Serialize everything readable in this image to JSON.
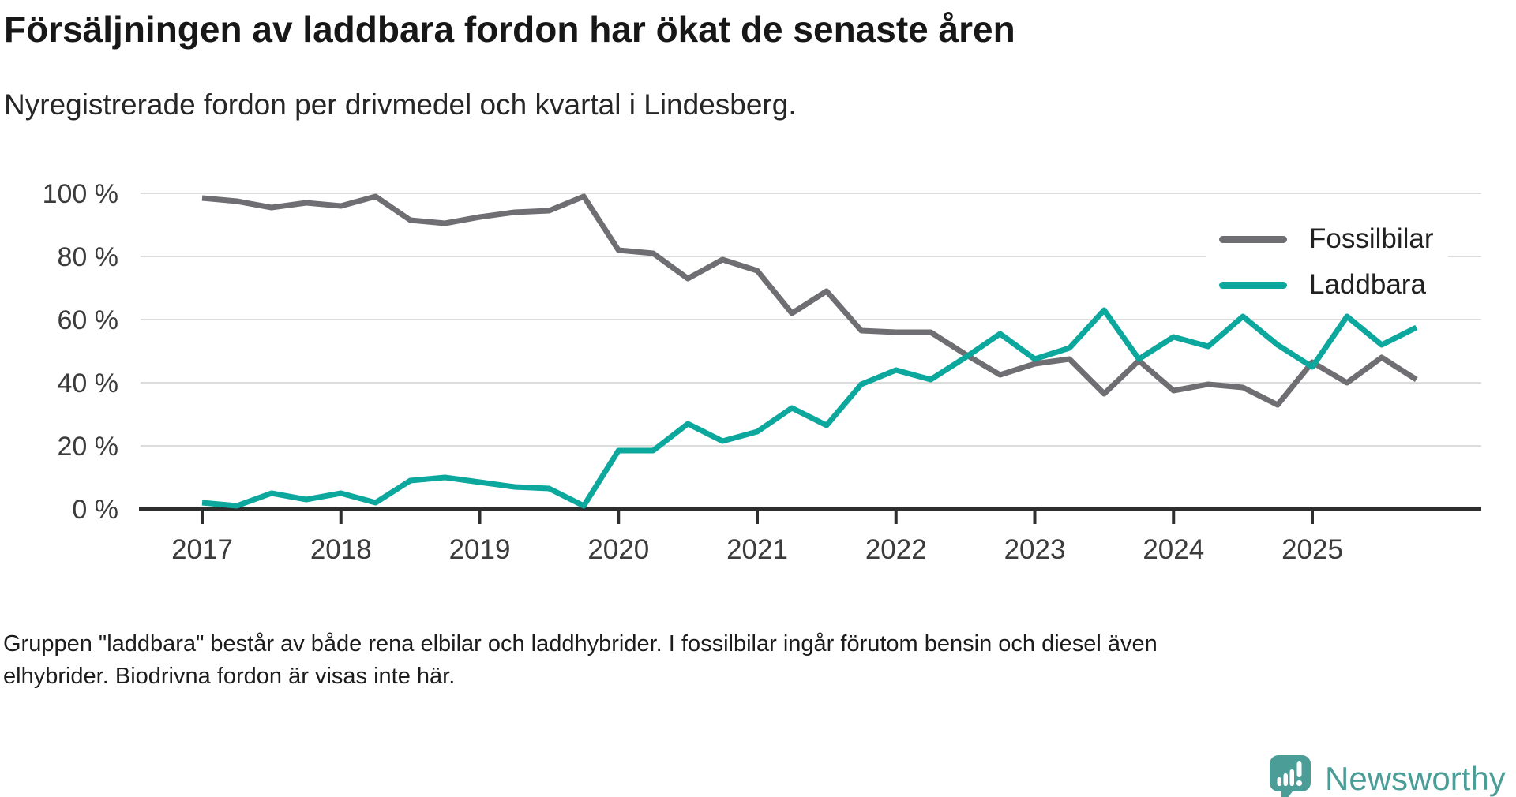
{
  "header": {
    "title": "Försäljningen av laddbara fordon har ökat de senaste åren",
    "subtitle": "Nyregistrerade fordon per drivmedel och kvartal i Lindesberg."
  },
  "footer": {
    "lines": [
      "Gruppen \"laddbara\" består av både rena elbilar och laddhybrider. I fossilbilar ingår förutom bensin och diesel även",
      "elhybrider. Biodrivna fordon är visas inte här."
    ]
  },
  "logo": {
    "text": "Newsworthy",
    "color": "#4b9e98",
    "icon": "speech-bubble-bar-chart-icon"
  },
  "colors": {
    "fossil_line": "#6f6e72",
    "laddbara_line": "#0ca79d",
    "gridline": "#dcdcdc",
    "axis": "#2e2e2e",
    "tick_label": "#3b3b3b"
  },
  "chart_data": {
    "type": "line",
    "x": [
      "2017 Q1",
      "2017 Q2",
      "2017 Q3",
      "2017 Q4",
      "2018 Q1",
      "2018 Q2",
      "2018 Q3",
      "2018 Q4",
      "2019 Q1",
      "2019 Q2",
      "2019 Q3",
      "2019 Q4",
      "2020 Q1",
      "2020 Q2",
      "2020 Q3",
      "2020 Q4",
      "2021 Q1",
      "2021 Q2",
      "2021 Q3",
      "2021 Q4",
      "2022 Q1",
      "2022 Q2",
      "2022 Q3",
      "2022 Q4",
      "2023 Q1",
      "2023 Q2",
      "2023 Q3",
      "2023 Q4",
      "2024 Q1",
      "2024 Q2",
      "2024 Q3",
      "2024 Q4",
      "2025 Q1",
      "2025 Q2",
      "2025 Q3",
      "2025 Q4"
    ],
    "series": [
      {
        "name": "Fossilbilar",
        "color": "#6f6e72",
        "values": [
          98.5,
          97.5,
          95.5,
          97,
          96,
          99,
          91.5,
          90.5,
          92.5,
          94,
          94.5,
          99,
          82,
          81,
          73,
          79,
          75.5,
          62,
          69,
          56.5,
          56,
          56,
          49,
          42.5,
          46,
          47.5,
          36.5,
          47,
          37.5,
          39.5,
          38.5,
          33,
          46.5,
          40,
          48,
          41
        ]
      },
      {
        "name": "Laddbara",
        "color": "#0ca79d",
        "values": [
          2,
          1,
          5,
          3,
          5,
          2,
          9,
          10,
          8.5,
          7,
          6.5,
          1,
          18.5,
          18.5,
          27,
          21.5,
          24.5,
          32,
          26.5,
          39.5,
          44,
          41,
          48,
          55.5,
          47.5,
          51,
          63,
          47.5,
          54.5,
          51.5,
          61,
          52,
          45,
          61,
          52,
          57.5
        ]
      }
    ],
    "title": "Försäljningen av laddbara fordon har ökat de senaste åren",
    "xlabel": "",
    "ylabel": "",
    "ylim": [
      0,
      100
    ],
    "yticks": [
      0,
      20,
      40,
      60,
      80,
      100
    ],
    "ytick_suffix": " %",
    "x_tick_labels": [
      "2017",
      "2018",
      "2019",
      "2020",
      "2021",
      "2022",
      "2023",
      "2024",
      "2025"
    ],
    "grid": true,
    "legend_position": "top-right"
  }
}
